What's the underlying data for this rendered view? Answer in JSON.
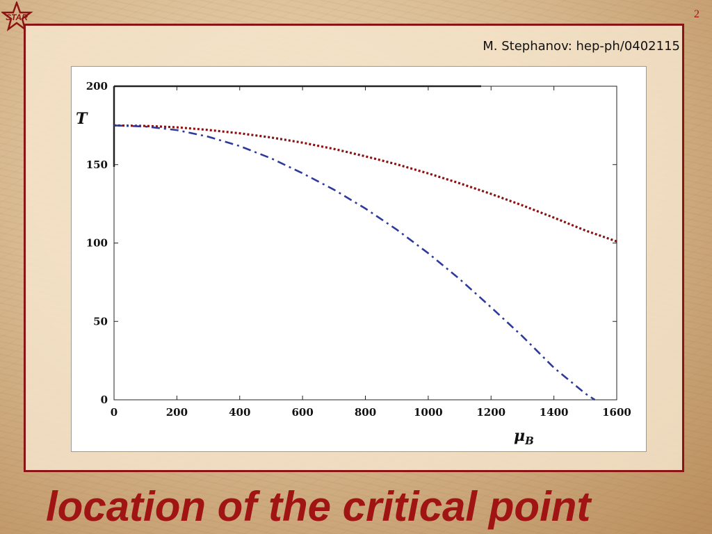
{
  "slide": {
    "page_number": "2",
    "logo_text": "STAR",
    "citation": "M. Stephanov: hep-ph/0402115",
    "title": "location of the critical point"
  },
  "colors": {
    "title": "#a01414",
    "frame": "#8a1414",
    "series_dotted": "#8b0f0f",
    "series_dashdot": "#2e3a9a"
  },
  "chart_data": {
    "type": "line",
    "title": "",
    "xlabel": "μ",
    "xlabel_sub": "B",
    "ylabel": "T",
    "xlim": [
      0,
      1600
    ],
    "ylim": [
      0,
      200
    ],
    "x_ticks": [
      0,
      200,
      400,
      600,
      800,
      1000,
      1200,
      1400,
      1600
    ],
    "y_ticks": [
      0,
      50,
      100,
      150,
      200
    ],
    "grid": false,
    "legend": "none",
    "series": [
      {
        "style": "dotted",
        "color": "#8b0f0f",
        "x": [
          0,
          100,
          200,
          300,
          400,
          500,
          600,
          700,
          800,
          900,
          1000,
          1100,
          1200,
          1300,
          1400,
          1500,
          1600
        ],
        "y": [
          175,
          174.7,
          173.8,
          172.1,
          170,
          167.3,
          164,
          160,
          155.3,
          150.2,
          144.4,
          138.1,
          131.3,
          124,
          116.2,
          108,
          101
        ]
      },
      {
        "style": "dashdot",
        "color": "#2e3a9a",
        "x": [
          0,
          100,
          200,
          300,
          400,
          500,
          600,
          700,
          800,
          900,
          1000,
          1100,
          1200,
          1300,
          1400,
          1500,
          1530
        ],
        "y": [
          175,
          174.3,
          172,
          167.8,
          161.8,
          154,
          144.5,
          134,
          122,
          108.5,
          93.5,
          77,
          59,
          40.5,
          20.5,
          4,
          0
        ]
      }
    ]
  }
}
